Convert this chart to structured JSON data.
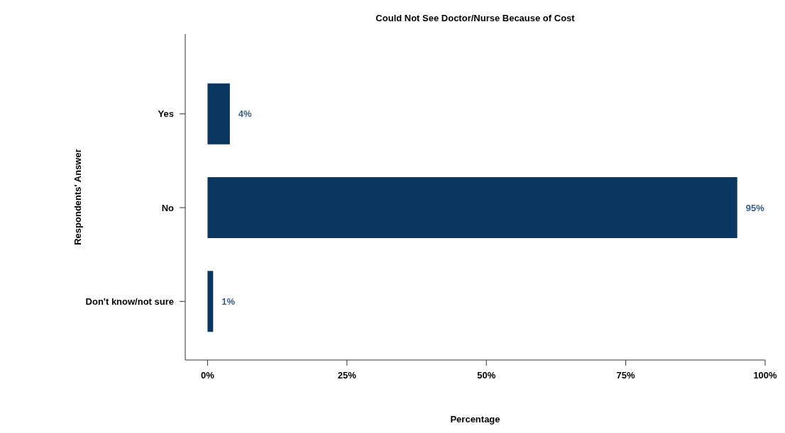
{
  "chart_data": {
    "type": "bar",
    "orientation": "horizontal",
    "title": "Could Not See Doctor/Nurse Because of Cost",
    "xlabel": "Percentage",
    "ylabel": "Respondents' Answer",
    "categories": [
      "Yes",
      "No",
      "Don't know/not sure"
    ],
    "values": [
      4,
      95,
      1
    ],
    "value_labels": [
      "4%",
      "95%",
      "1%"
    ],
    "color": "#0b3660",
    "xlim": [
      -4,
      100
    ],
    "xticks": [
      {
        "value": 0,
        "label": "0%"
      },
      {
        "value": 25,
        "label": "25%"
      },
      {
        "value": 50,
        "label": "50%"
      },
      {
        "value": 75,
        "label": "75%"
      },
      {
        "value": 100,
        "label": "100%"
      }
    ],
    "grid": false
  }
}
